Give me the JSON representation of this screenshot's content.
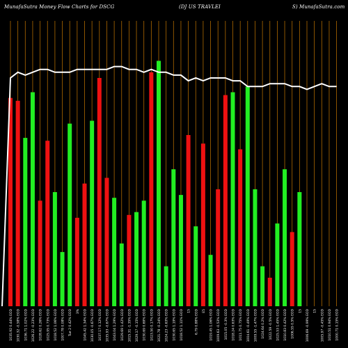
{
  "header": {
    "left": "MunafaSutra  Money Flow  Charts for DSCG",
    "mid": "(DJ US TRAVLEI",
    "right": "S) MunafaSutra.com"
  },
  "chart_data": {
    "type": "bar",
    "title": "MunafaSutra  Money Flow  Charts for DSCG",
    "subtitle": "(DJ US TRAVLEI S)",
    "ylim": [
      0,
      100
    ],
    "grid": true,
    "categories": [
      "1035.92 0.44% EOD",
      "1030.32 -0.58% EOD",
      "1036.71 1.02% EOD",
      "1026.22 -0.23% EOD",
      "1028.62 0.26% EOD",
      "1025.95 0.73% EOD",
      "1018.52 1.06% EOD",
      "1007.78 0.08% EOD",
      "Tue 2 0.42% EOD",
      "Mon 1 2.5% EOD",
      "1045.42 1.34% EOD",
      "1030.05 -0.67% EOD",
      "1037.17 0.12% EOD",
      "1035.93 -0.67% EOD",
      "1043.04 1.29% EOD",
      "1029.69 1.42% EOD",
      "1015.31 -1.35% EOD",
      "1029.17 -0.15% EOD",
      "1030.69 0.69% EOD",
      "1023.50 0.17% EOD",
      "1021.78 -0.24% EOD",
      "1024.23 -0.63% EOD",
      "1030.65 1.19% EOD",
      "1018.52 1.11% EOD",
      "1007.43 1.57% EOD",
      "6.79 0.88% EOD",
      "1006.85 -1.24% EOD",
      "1019.45 1.06% EOD",
      "1009.63 -0.53% EOD",
      "1015.05 -0.3% EOD",
      "1018.24 0.63% EOD",
      "1011.75 0.75% EOD",
      "1004.61 -0.49% EOD",
      "1009.55 -1.47% EOD",
      "1024.64 0.2% EOD",
      "1022.59 -0.5% EOD",
      "1025.53 1.45% EOD",
      "1010.83 0.42% EOD",
      "1006.55 0.5% EOD",
      "1001.55 -0.51% EOD",
      "1006.69 -0.99% EOD",
      "1016.72 1.07% EOD",
      "1005.97 -0.45% EOD",
      "1010.51 0.94% EOD",
      "1000.71 0.15% EOD"
    ],
    "x_tick_labels": [
      "1035.92 0.44% EOD",
      "1030.32 -0.58% EOD",
      "1036.71 1.02% EOD",
      "1026.22 -0.23% EOD",
      "1028.62 0.26% EOD",
      "1025.95 0.73% EOD",
      "1018.52 1.06% EOD",
      "1007.78 0.08% EOD",
      "Tue 2 0.42% EOD",
      "3%",
      "1045.42 1.34% EOD",
      "1030.05 -0.67% EOD",
      "1037.17 0.12% EOD",
      "1035.93 -0.67% EOD",
      "1043.04 1.29% EOD",
      "1029.69 1.42% EOD",
      "1015.31 -1.35% EOD",
      "1029.17 -0.15% EOD",
      "1030.69 0.69% EOD",
      "1023.50 0.17% EOD",
      "1021.78 -0.24% EOD",
      "1024.23 -0.63% EOD",
      "1030.65 1.19% EOD",
      "1018.52 1.11% EOD",
      "15",
      "6.79 0.88% EOD",
      "E5",
      "1019.45 1.06% EOD",
      "1009.63 -0.53% EOD",
      "1015.05 -0.3% EOD",
      "1018.24 0.63% EOD",
      "1011.75 0.75% EOD",
      "1004.61 -0.49% EOD",
      "1009.55 -1.47% EOD",
      "1024.64 0.2% EOD",
      "1022.59 -0.5% EOD",
      "1025.53 1.45% EOD",
      "1010.83 0.42% EOD",
      "1006.55 0.5% EOD",
      "15",
      "1006.69 -0.99% EOD",
      "15",
      "1005.97 -0.45% EOD",
      "1010.51 0.94% EOD",
      "1000.71 0.15% EOD"
    ],
    "series": [
      {
        "values": [
          73,
          72,
          59,
          75,
          37,
          58,
          40,
          19,
          64,
          31,
          43,
          65,
          80,
          45,
          38,
          22,
          32,
          33,
          37,
          82,
          86,
          14,
          48,
          39,
          60,
          28,
          57,
          18,
          41,
          74,
          75,
          55,
          77,
          41,
          14,
          10,
          29,
          48,
          26,
          40,
          0,
          0,
          0,
          0,
          0
        ],
        "direction": [
          "red",
          "red",
          "green",
          "green",
          "red",
          "red",
          "green",
          "green",
          "green",
          "red",
          "red",
          "green",
          "red",
          "red",
          "green",
          "green",
          "red",
          "green",
          "green",
          "red",
          "green",
          "green",
          "green",
          "green",
          "red",
          "green",
          "red",
          "green",
          "red",
          "red",
          "green",
          "red",
          "green",
          "green",
          "green",
          "red",
          "green",
          "green",
          "red",
          "green",
          "none",
          "none",
          "none",
          "none",
          "none"
        ]
      }
    ],
    "line": [
      80,
      82,
      81,
      82,
      83,
      83,
      82,
      82,
      82,
      83,
      83,
      83,
      83,
      83,
      84,
      84,
      83,
      83,
      82,
      83,
      82,
      82,
      81,
      81,
      79,
      80,
      79,
      80,
      80,
      80,
      79,
      79,
      77,
      77,
      77,
      78,
      78,
      78,
      77,
      77,
      76,
      77,
      78,
      77,
      77
    ],
    "colors": {
      "up": "#22ee22",
      "down": "#ee1111",
      "line": "#ffffff",
      "grid": "#b06a00",
      "background": "#000000",
      "text": "#ffffff"
    }
  }
}
